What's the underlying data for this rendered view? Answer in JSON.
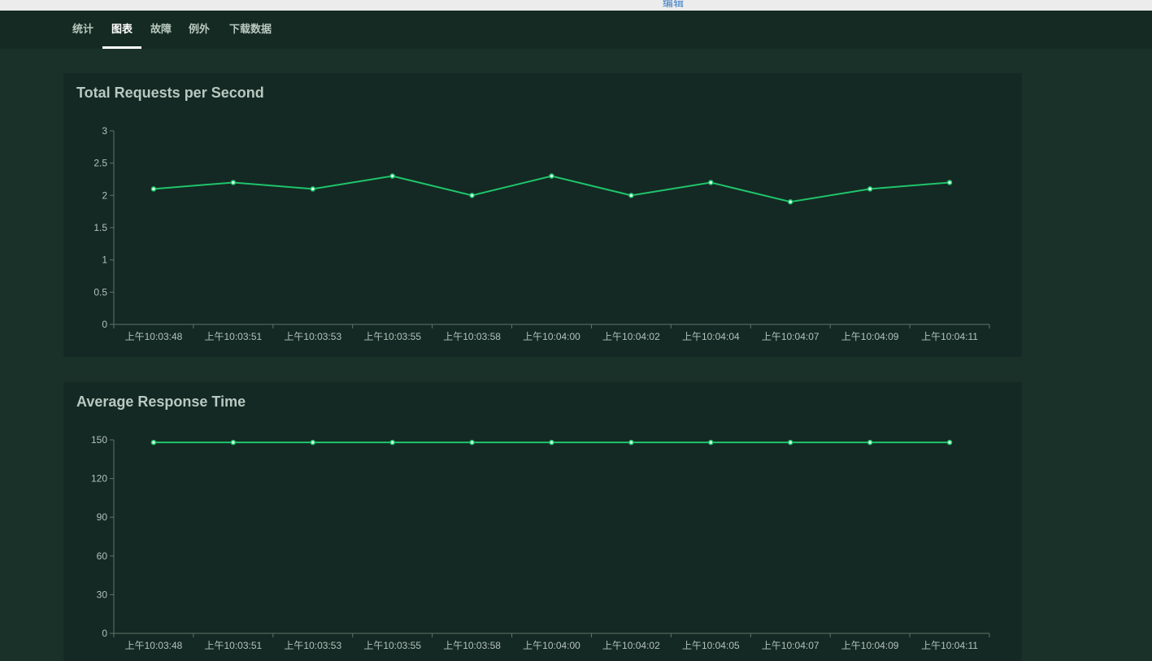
{
  "topbar": {
    "edit_label": "编辑"
  },
  "nav": {
    "tabs": [
      {
        "label": "统计",
        "active": false
      },
      {
        "label": "图表",
        "active": true
      },
      {
        "label": "故障",
        "active": false
      },
      {
        "label": "例外",
        "active": false
      },
      {
        "label": "下载数据",
        "active": false
      }
    ]
  },
  "colors": {
    "line": "#1fc46c",
    "axis": "#5f736a",
    "background": "#193128",
    "panel": "#142923"
  },
  "chart_data": [
    {
      "type": "line",
      "title": "Total Requests per Second",
      "categories": [
        "上午10:03:48",
        "上午10:03:51",
        "上午10:03:53",
        "上午10:03:55",
        "上午10:03:58",
        "上午10:04:00",
        "上午10:04:02",
        "上午10:04:04",
        "上午10:04:07",
        "上午10:04:09",
        "上午10:04:11"
      ],
      "series": [
        {
          "values": [
            2.1,
            2.2,
            2.1,
            2.3,
            2.0,
            2.3,
            2.0,
            2.2,
            1.9,
            2.1,
            2.2
          ]
        }
      ],
      "yticks": [
        "0",
        "0.5",
        "1",
        "1.5",
        "2",
        "2.5",
        "3"
      ],
      "ylim": [
        0,
        3
      ],
      "grid": false
    },
    {
      "type": "line",
      "title": "Average Response Time",
      "categories": [
        "上午10:03:48",
        "上午10:03:51",
        "上午10:03:53",
        "上午10:03:55",
        "上午10:03:58",
        "上午10:04:00",
        "上午10:04:02",
        "上午10:04:05",
        "上午10:04:07",
        "上午10:04:09",
        "上午10:04:11"
      ],
      "series": [
        {
          "values": [
            148,
            148,
            148,
            148,
            148,
            148,
            148,
            148,
            148,
            148,
            148
          ]
        }
      ],
      "yticks": [
        "0",
        "30",
        "60",
        "90",
        "120",
        "150"
      ],
      "ylim": [
        0,
        150
      ],
      "grid": false
    }
  ]
}
